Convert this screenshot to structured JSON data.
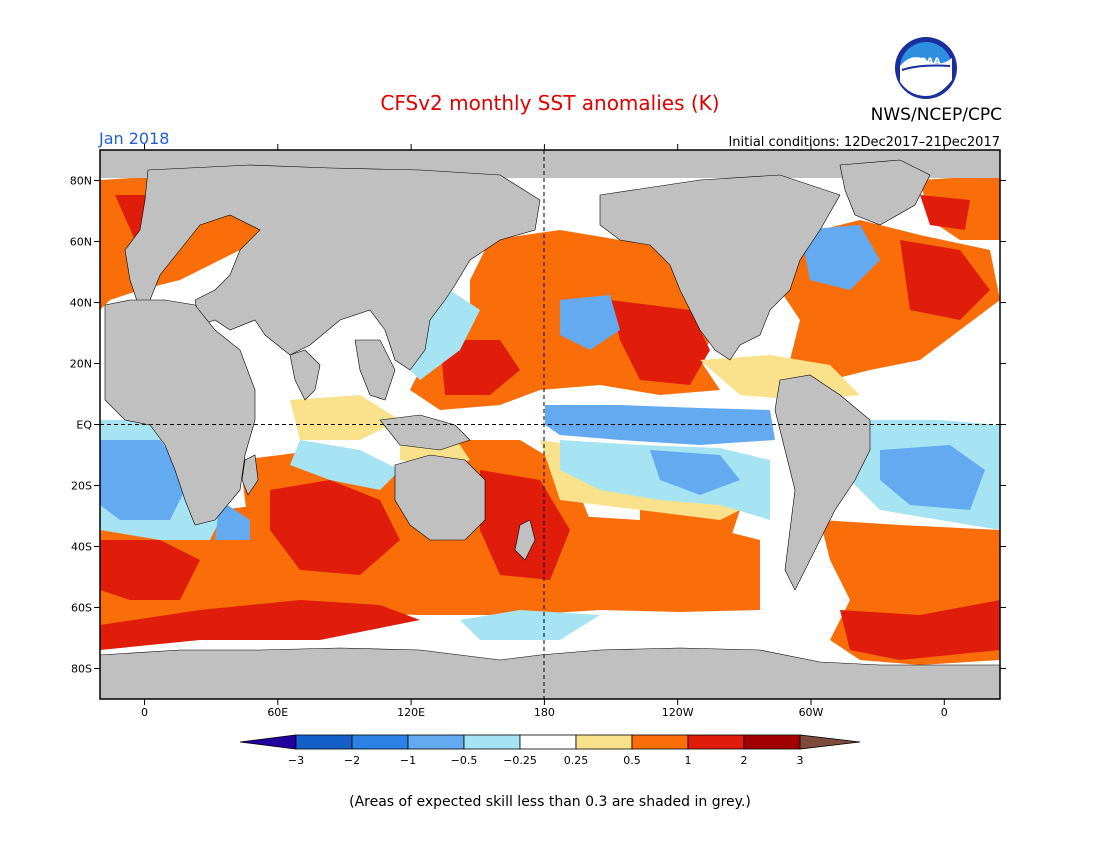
{
  "header": {
    "title": "CFSv2 monthly SST anomalies (K)",
    "month": "Jan 2018",
    "agency": "NWS/NCEP/CPC",
    "initial_conditions": "Initial conditions: 12Dec2017–21Dec2017",
    "logo_text": "NOAA"
  },
  "map": {
    "lon_labels": [
      "0",
      "60E",
      "120E",
      "180",
      "120W",
      "60W",
      "0"
    ],
    "lat_labels": [
      "80N",
      "60N",
      "40N",
      "20N",
      "EQ",
      "20S",
      "40S",
      "60S",
      "80S"
    ],
    "colors": {
      "land": "#c0c0c0",
      "frame": "#000000",
      "title": "#e00000",
      "month": "#2060d0"
    }
  },
  "legend": {
    "labels": [
      "−3",
      "−2",
      "−1",
      "−0.5",
      "−0.25",
      "0.25",
      "0.5",
      "1",
      "2",
      "3"
    ],
    "colors": [
      "#2200a0",
      "#1460c8",
      "#2c82e4",
      "#64aaf0",
      "#a6e4f4",
      "#ffffff",
      "#fae28c",
      "#fa6e0a",
      "#e01c0a",
      "#a00000",
      "#7e4a3a"
    ]
  },
  "footnote": "(Areas of expected skill less than 0.3 are shaded in grey.)"
}
